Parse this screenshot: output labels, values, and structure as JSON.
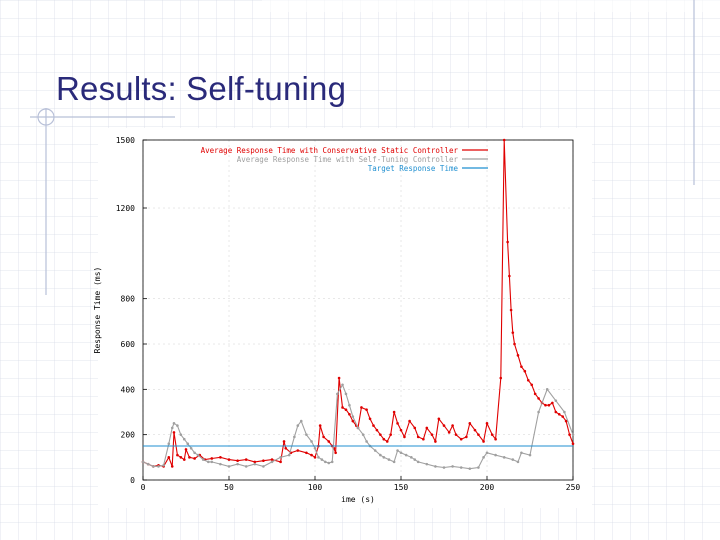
{
  "slide": {
    "title": "Results: Self-tuning"
  },
  "colors": {
    "title": "#2a2a7a",
    "conservative": "#e00000",
    "self_tuning": "#a0a0a0",
    "target": "#1f8fd0",
    "grid": "#d0d0d0"
  },
  "chart_data": {
    "type": "line",
    "title": "",
    "xlabel": "ime (s)",
    "ylabel": "Response Time (ms)",
    "xlim": [
      0,
      250
    ],
    "ylim": [
      0,
      1500
    ],
    "x_ticks": [
      "0",
      "50",
      "100",
      "150",
      "200",
      "250"
    ],
    "y_ticks": [
      "0",
      "200",
      "400",
      "600",
      "800",
      "1200",
      "1500"
    ],
    "y_tick_values": [
      0,
      200,
      400,
      600,
      800,
      1200,
      1500
    ],
    "legend_position": "top-right",
    "series": [
      {
        "name": "Average Response Time with Conservative Static Controller",
        "color": "#e00000",
        "x": [
          0,
          3,
          6,
          9,
          12,
          15,
          17,
          18,
          20,
          22,
          24,
          25,
          27,
          30,
          33,
          36,
          40,
          45,
          50,
          55,
          60,
          65,
          70,
          75,
          80,
          82,
          83,
          86,
          90,
          95,
          98,
          100,
          102,
          103,
          105,
          108,
          110,
          111,
          112,
          114,
          116,
          118,
          120,
          122,
          124,
          125,
          127,
          130,
          132,
          134,
          136,
          138,
          140,
          142,
          144,
          146,
          148,
          150,
          152,
          155,
          158,
          160,
          163,
          165,
          168,
          170,
          172,
          175,
          178,
          180,
          182,
          185,
          188,
          190,
          193,
          195,
          198,
          200,
          203,
          205,
          208,
          210,
          212,
          213,
          214,
          215,
          216,
          218,
          220,
          222,
          224,
          226,
          228,
          230,
          232,
          234,
          236,
          238,
          240,
          242,
          244,
          246,
          248,
          250
        ],
        "y": [
          80,
          70,
          60,
          65,
          60,
          100,
          60,
          210,
          110,
          100,
          90,
          135,
          100,
          95,
          110,
          90,
          95,
          100,
          90,
          85,
          90,
          80,
          85,
          90,
          80,
          170,
          140,
          120,
          130,
          120,
          110,
          100,
          150,
          240,
          190,
          170,
          150,
          140,
          120,
          450,
          320,
          310,
          290,
          260,
          240,
          230,
          320,
          310,
          270,
          240,
          220,
          200,
          180,
          170,
          200,
          300,
          250,
          220,
          190,
          260,
          230,
          190,
          180,
          230,
          200,
          170,
          270,
          240,
          210,
          240,
          200,
          180,
          190,
          250,
          220,
          200,
          170,
          250,
          200,
          180,
          450,
          1500,
          1050,
          900,
          750,
          650,
          600,
          550,
          500,
          480,
          440,
          420,
          380,
          360,
          340,
          330,
          330,
          340,
          300,
          290,
          280,
          260,
          200,
          160
        ]
      },
      {
        "name": "Average Response Time with Self-Tuning Controller",
        "color": "#a0a0a0",
        "x": [
          0,
          3,
          6,
          9,
          12,
          15,
          17,
          18,
          20,
          22,
          24,
          26,
          28,
          30,
          32,
          35,
          38,
          40,
          45,
          50,
          55,
          60,
          65,
          70,
          75,
          80,
          85,
          88,
          90,
          92,
          95,
          98,
          100,
          102,
          104,
          106,
          108,
          110,
          113,
          116,
          118,
          120,
          122,
          125,
          128,
          130,
          132,
          135,
          138,
          140,
          143,
          146,
          148,
          150,
          153,
          156,
          158,
          160,
          165,
          170,
          175,
          180,
          185,
          190,
          195,
          198,
          200,
          205,
          210,
          215,
          218,
          220,
          225,
          230,
          235,
          240,
          245,
          250
        ],
        "y": [
          80,
          70,
          60,
          60,
          65,
          160,
          230,
          250,
          240,
          200,
          180,
          160,
          140,
          120,
          110,
          90,
          80,
          80,
          70,
          60,
          70,
          60,
          70,
          60,
          80,
          100,
          110,
          190,
          240,
          260,
          200,
          170,
          140,
          100,
          90,
          80,
          75,
          80,
          380,
          420,
          380,
          330,
          280,
          230,
          200,
          170,
          150,
          130,
          110,
          100,
          90,
          80,
          130,
          120,
          110,
          100,
          90,
          80,
          70,
          60,
          55,
          60,
          55,
          50,
          55,
          100,
          120,
          110,
          100,
          90,
          80,
          120,
          110,
          300,
          400,
          350,
          300,
          200
        ]
      },
      {
        "name": "Target Response Time",
        "color": "#1f8fd0",
        "x": [
          0,
          250
        ],
        "y": [
          150,
          150
        ]
      }
    ]
  }
}
